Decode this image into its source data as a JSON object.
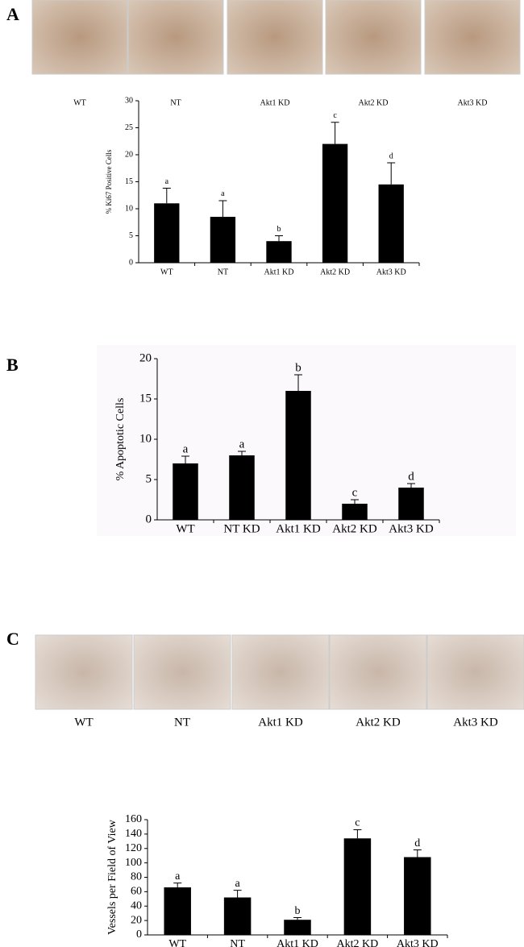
{
  "chart_data": [
    {
      "type": "bar",
      "panel": "A",
      "image_labels": [
        "WT",
        "NT",
        "Akt1 KD",
        "Akt2 KD",
        "Akt3 KD"
      ],
      "ylabel": "% Ki67 Positive Cells",
      "categories": [
        "WT",
        "NT",
        "Akt1 KD",
        "Akt2 KD",
        "Akt3 KD"
      ],
      "values": [
        11,
        8.5,
        4,
        22,
        14.5
      ],
      "errors": [
        2.8,
        3,
        1,
        4,
        4
      ],
      "annotations": [
        "a",
        "a",
        "b",
        "c",
        "d"
      ],
      "color": "#000000",
      "ylim": [
        0,
        30
      ],
      "yticks": [
        0,
        5,
        10,
        15,
        20,
        25,
        30
      ]
    },
    {
      "type": "bar",
      "panel": "B",
      "ylabel": "% Apoptotic Cells",
      "categories": [
        "WT",
        "NT KD",
        "Akt1 KD",
        "Akt2 KD",
        "Akt3 KD"
      ],
      "values": [
        7,
        8,
        16,
        2,
        4
      ],
      "errors": [
        0.9,
        0.5,
        2,
        0.5,
        0.5
      ],
      "annotations": [
        "a",
        "a",
        "b",
        "c",
        "d"
      ],
      "color": "#000000",
      "ylim": [
        0,
        20
      ],
      "yticks": [
        0,
        5,
        10,
        15,
        20
      ]
    },
    {
      "type": "bar",
      "panel": "C",
      "image_labels": [
        "WT",
        "NT",
        "Akt1 KD",
        "Akt2 KD",
        "Akt3 KD"
      ],
      "ylabel": "Vessels per Field of View",
      "categories": [
        "WT",
        "NT",
        "Akt1 KD",
        "Akt2 KD",
        "Akt3 KD"
      ],
      "values": [
        66,
        52,
        21,
        134,
        108
      ],
      "errors": [
        6,
        10,
        3,
        12,
        10
      ],
      "annotations": [
        "a",
        "a",
        "b",
        "c",
        "d"
      ],
      "color": "#000000",
      "ylim": [
        0,
        160
      ],
      "yticks": [
        0,
        20,
        40,
        60,
        80,
        100,
        120,
        140,
        160
      ]
    }
  ]
}
